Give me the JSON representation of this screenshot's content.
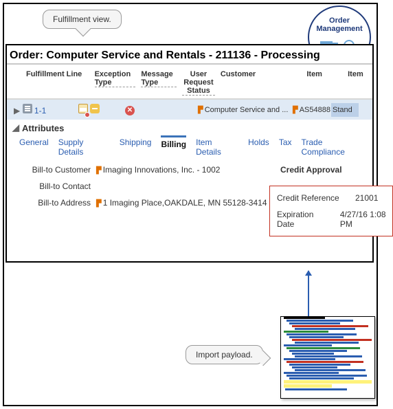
{
  "callouts": {
    "top": "Fulfillment view.",
    "bottom": "Import payload."
  },
  "badge": {
    "line1": "Order",
    "line2": "Management"
  },
  "order_title": "Order: Computer Service and Rentals - 211136 - Processing",
  "columns": {
    "fulfillment_line": "Fulfillment Line",
    "exception_type": "Exception Type",
    "message_type": "Message Type",
    "user_request_status": "User Request Status",
    "customer": "Customer",
    "item": "Item",
    "item2": "Item"
  },
  "row": {
    "line": "1-1",
    "customer": "Computer Service and ...",
    "item": "AS54888",
    "item2": "Stand"
  },
  "attributes_label": "Attributes",
  "tabs": {
    "general": "General",
    "supply": "Supply Details",
    "shipping": "Shipping",
    "billing": "Billing",
    "item_details": "Item Details",
    "holds": "Holds",
    "tax": "Tax",
    "trade": "Trade Compliance"
  },
  "billto": {
    "customer_label": "Bill-to Customer",
    "customer_value": "Imaging Innovations, Inc. - 1002",
    "contact_label": "Bill-to Contact",
    "address_label": "Bill-to Address",
    "address_value": "1 Imaging Place,OAKDALE, MN 55128-3414"
  },
  "credit": {
    "approval_label": "Credit Approval",
    "ref_label": "Credit Reference",
    "ref_value": "21001",
    "exp_label": "Expiration Date",
    "exp_value": "4/27/16 1:08 PM"
  },
  "payload_colors": {
    "blue": "#2a5db0",
    "red": "#c23020",
    "green": "#2a8a3a",
    "black": "#000000",
    "highlight": "#fff27a"
  }
}
